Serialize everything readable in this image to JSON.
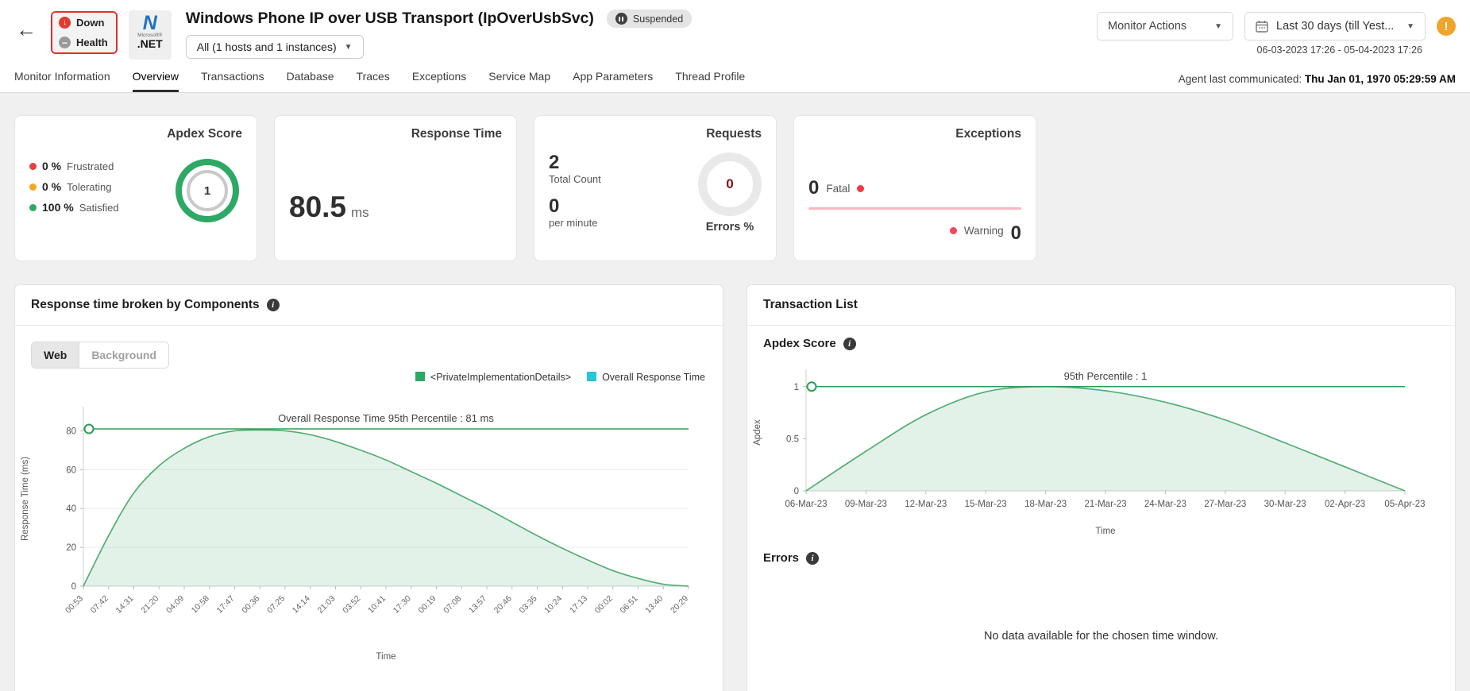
{
  "header": {
    "back": "←",
    "status_box": {
      "down": "Down",
      "health": "Health"
    },
    "logo": {
      "n": "N",
      "brand_small": "Microsoft®",
      "brand": ".NET"
    },
    "title": "Windows Phone IP over USB Transport (IpOverUsbSvc)",
    "suspended": "Suspended",
    "scope": "All (1 hosts and 1 instances)",
    "monitor_actions": "Monitor Actions",
    "date_range": "Last 30 days (till Yest...",
    "date_detail": "06-03-2023 17:26 - 05-04-2023 17:26",
    "alert": "!"
  },
  "tabs": {
    "items": [
      "Monitor Information",
      "Overview",
      "Transactions",
      "Database",
      "Traces",
      "Exceptions",
      "Service Map",
      "App Parameters",
      "Thread Profile"
    ],
    "active": "Overview",
    "agent_label": "Agent last communicated:",
    "agent_time": "Thu Jan 01, 1970 05:29:59 AM"
  },
  "cards": {
    "apdex": {
      "title": "Apdex Score",
      "legend": [
        {
          "pct": "0 %",
          "label": "Frustrated",
          "color": "#e8403a"
        },
        {
          "pct": "0 %",
          "label": "Tolerating",
          "color": "#f5a623"
        },
        {
          "pct": "100 %",
          "label": "Satisfied",
          "color": "#2ea865"
        }
      ],
      "gauge_value": "1"
    },
    "response_time": {
      "title": "Response Time",
      "value": "80.5",
      "unit": "ms"
    },
    "requests": {
      "title": "Requests",
      "total_value": "2",
      "total_label": "Total Count",
      "rate_value": "0",
      "rate_label": "per minute",
      "donut_value": "0",
      "donut_label": "Errors %"
    },
    "exceptions": {
      "title": "Exceptions",
      "fatal_value": "0",
      "fatal_label": "Fatal",
      "warning_label": "Warning",
      "warning_value": "0",
      "fatal_color": "#f03a44",
      "warning_color": "#f4455a"
    }
  },
  "left_panel": {
    "title": "Response time broken by Components",
    "toggle": {
      "web": "Web",
      "background": "Background"
    },
    "legend": [
      {
        "label": "<PrivateImplementationDetails>",
        "color": "#2ea865"
      },
      {
        "label": "Overall Response Time",
        "color": "#29c5d6"
      }
    ]
  },
  "right_panel": {
    "title": "Transaction List",
    "apdex_heading": "Apdex Score",
    "errors_heading": "Errors",
    "no_data": "No data available for the chosen time window."
  },
  "chart_data": [
    {
      "type": "area",
      "title": "Response time broken by Components",
      "series_name": "<PrivateImplementationDetails>",
      "categories": [
        "00:53",
        "07:42",
        "14:31",
        "21:20",
        "04:09",
        "10:58",
        "17:47",
        "00:36",
        "07:25",
        "14:14",
        "21:03",
        "03:52",
        "10:41",
        "17:30",
        "00:19",
        "07:08",
        "13:57",
        "20:46",
        "03:35",
        "10:24",
        "17:13",
        "00:02",
        "06:51",
        "13:40",
        "20:29"
      ],
      "values": [
        0,
        26,
        48,
        62,
        71,
        77,
        80,
        80.5,
        80,
        78,
        74.5,
        70,
        65,
        59,
        53,
        46.5,
        40,
        33,
        26,
        19.5,
        13.5,
        8,
        4,
        1,
        0
      ],
      "xlabel": "Time",
      "ylabel": "Response Time (ms)",
      "ylim": [
        0,
        90
      ],
      "yticks": [
        0,
        20,
        40,
        60,
        80
      ],
      "grid": true,
      "rotate_x_labels": true,
      "legend_position": "top-right",
      "percentile": {
        "value": 81,
        "label": "Overall Response Time 95th Percentile : 81 ms"
      },
      "line_color": "#53ad74",
      "fill_color": "rgba(83,173,116,0.16)",
      "percentile_color": "#2e9e53"
    },
    {
      "type": "area",
      "title": "Apdex Score",
      "series_name": "Apdex",
      "categories": [
        "06-Mar-23",
        "09-Mar-23",
        "12-Mar-23",
        "15-Mar-23",
        "18-Mar-23",
        "21-Mar-23",
        "24-Mar-23",
        "27-Mar-23",
        "30-Mar-23",
        "02-Apr-23",
        "05-Apr-23"
      ],
      "values": [
        0,
        0.38,
        0.73,
        0.95,
        1.0,
        0.96,
        0.85,
        0.68,
        0.46,
        0.23,
        0
      ],
      "xlabel": "Time",
      "ylabel": "Apdex",
      "ylim": [
        0,
        1.12
      ],
      "yticks": [
        0,
        0.5,
        1
      ],
      "ytick_labels": [
        "0",
        "0.5",
        "1"
      ],
      "grid": false,
      "rotate_x_labels": false,
      "legend_position": "none",
      "percentile": {
        "value": 1,
        "label": "95th Percentile : 1"
      },
      "line_color": "#53ad74",
      "fill_color": "rgba(83,173,116,0.16)",
      "percentile_color": "#2e9e53"
    }
  ]
}
